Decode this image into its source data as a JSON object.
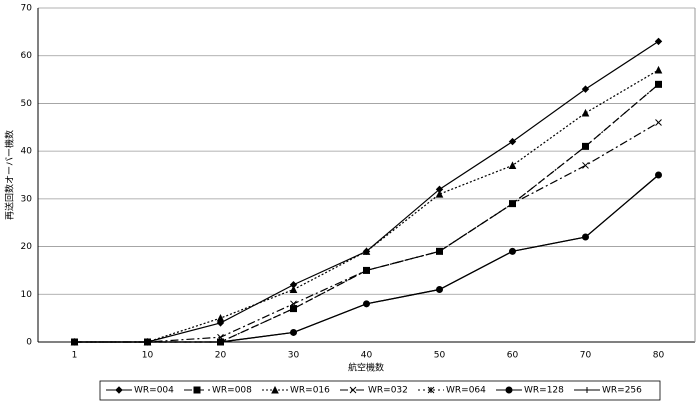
{
  "chart_data": {
    "type": "line",
    "y_label": "再送回数オーバー機数",
    "x_label": "航空機数",
    "categories": [
      "1",
      "10",
      "20",
      "30",
      "40",
      "50",
      "60",
      "70",
      "80"
    ],
    "series": [
      {
        "name": "WR=004",
        "color": "#000000",
        "dash": "none",
        "marker": "diamond",
        "values": [
          0,
          0,
          4,
          12,
          19,
          32,
          42,
          53,
          63
        ]
      },
      {
        "name": "WR=008",
        "color": "#000000",
        "dash": "8 4",
        "marker": "square",
        "values": [
          0,
          0,
          0,
          7,
          15,
          19,
          29,
          41,
          54
        ]
      },
      {
        "name": "WR=016",
        "color": "#000000",
        "dash": "2 2",
        "marker": "triangle",
        "values": [
          0,
          0,
          5,
          11,
          19,
          31,
          37,
          48,
          57
        ]
      },
      {
        "name": "WR=032",
        "color": "#000000",
        "dash": "8 3 2 3",
        "marker": "x",
        "values": [
          0,
          0,
          1,
          8,
          15,
          19,
          29,
          37,
          46
        ]
      },
      {
        "name": "WR=064",
        "color": "#000000",
        "dash": "2 3",
        "marker": "star",
        "values": [
          0,
          0,
          0,
          7,
          15,
          19,
          29,
          41,
          54
        ]
      },
      {
        "name": "WR=128",
        "color": "#000000",
        "dash": "none",
        "marker": "circle",
        "values": [
          0,
          0,
          0,
          2,
          8,
          11,
          19,
          22,
          35
        ]
      },
      {
        "name": "WR=256",
        "color": "#000000",
        "dash": "none",
        "marker": "plus",
        "values": [
          0,
          0,
          0,
          2,
          8,
          11,
          19,
          22,
          35
        ]
      }
    ],
    "ylim": [
      0,
      70
    ],
    "yticks": [
      0,
      10,
      20,
      30,
      40,
      50,
      60,
      70
    ],
    "grid": true,
    "legend": "bottom"
  }
}
